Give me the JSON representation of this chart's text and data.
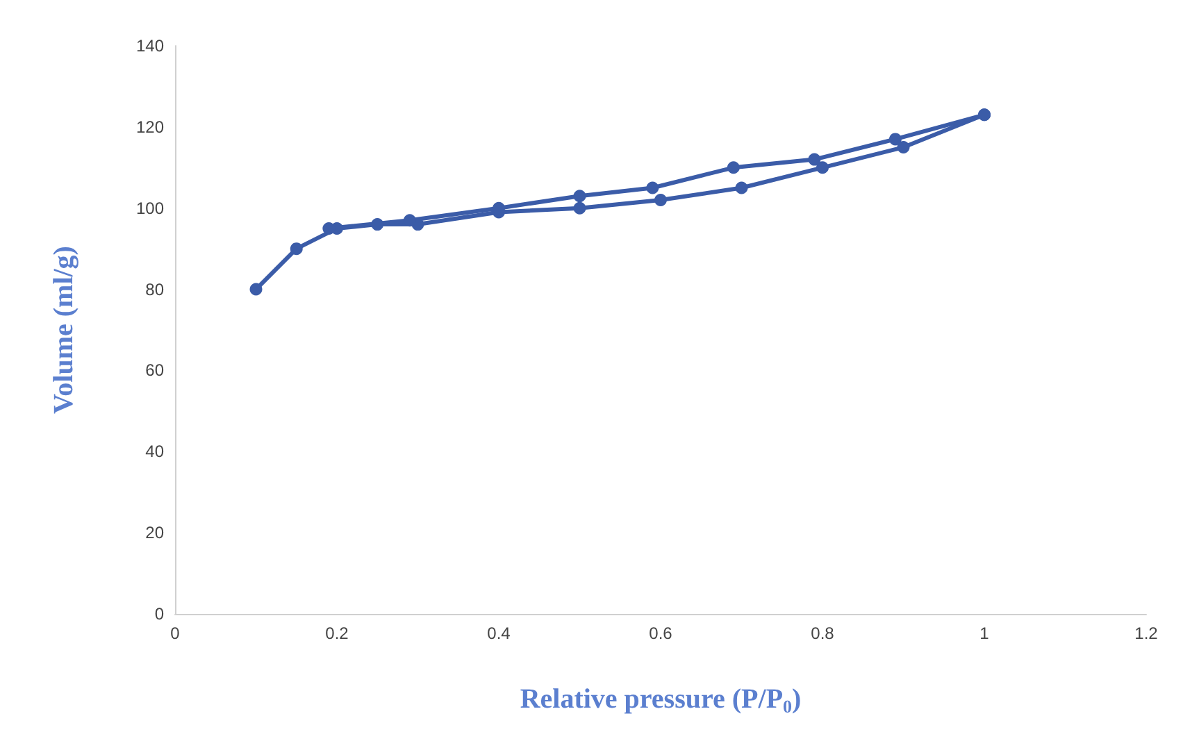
{
  "chart_data": {
    "type": "line",
    "xlabel": "Relative pressure (P/P$_{0}$)",
    "ylabel": "Volume (ml/g)",
    "xlim": [
      0,
      1.2
    ],
    "xticks": [
      0,
      0.2,
      0.4,
      0.6,
      0.8,
      1,
      1.2
    ],
    "ylim": [
      0,
      140
    ],
    "yticks": [
      0,
      20,
      40,
      60,
      80,
      100,
      120,
      140
    ],
    "grid": false,
    "marker": "circle",
    "line_style": "solid",
    "series": [
      {
        "color": "#3b5ca8",
        "x": [
          0.1,
          0.15,
          0.2,
          0.25,
          0.3,
          0.4,
          0.5,
          0.6,
          0.7,
          0.8,
          0.9,
          1
        ],
        "values": [
          80,
          90,
          95,
          96,
          96,
          99,
          100,
          102,
          105,
          110,
          115,
          123
        ]
      },
      {
        "color": "#3b5ca8",
        "x": [
          1,
          0.89,
          0.79,
          0.69,
          0.59,
          0.5,
          0.4,
          0.29,
          0.19
        ],
        "values": [
          123,
          117,
          112,
          110,
          105,
          103,
          100,
          97,
          95
        ]
      }
    ]
  }
}
